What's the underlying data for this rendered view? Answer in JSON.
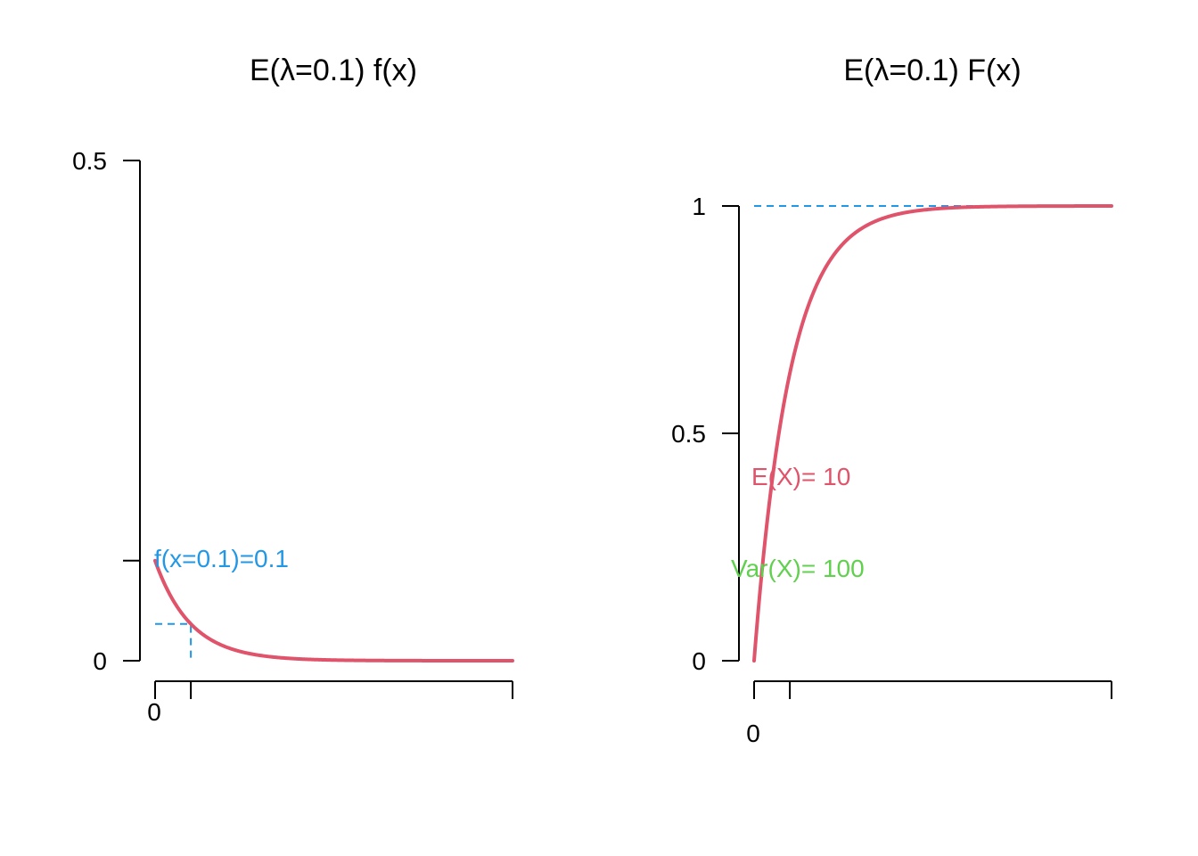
{
  "colors": {
    "curve": "#DF536B",
    "guide": "#2297E6",
    "mean": "#DF536B",
    "variance": "#61D04F",
    "zero_tick_gray": "#6b6b6b"
  },
  "chart_data": [
    {
      "type": "line",
      "title": "E(λ=0.1)  f(x)",
      "xlabel": "",
      "ylabel": "",
      "rate": 0.1,
      "x_range": [
        0,
        100
      ],
      "ylim": [
        0,
        0.5
      ],
      "y_ticks": [
        {
          "value": 0,
          "label": "0"
        },
        {
          "value": 0.1,
          "label": ""
        },
        {
          "value": 0.5,
          "label": "0.5"
        }
      ],
      "x_ticks": [
        {
          "value": 0,
          "label": "0"
        },
        {
          "value": 10,
          "label": ""
        },
        {
          "value": 100,
          "label": ""
        }
      ],
      "series": [
        {
          "x": [
            0,
            5,
            10,
            15,
            20,
            25,
            30,
            40,
            50,
            60,
            70,
            80,
            90,
            100
          ],
          "y": [
            0.1,
            0.0607,
            0.0368,
            0.0223,
            0.0135,
            0.0082,
            0.005,
            0.0018,
            0.0007,
            0.0002,
            0.0001,
            0.0,
            0.0,
            0.0
          ]
        }
      ],
      "guide_point": {
        "x": 10,
        "y": 0.0368
      },
      "annotation": "f(x=0.1)=0.1",
      "grid": false
    },
    {
      "type": "line",
      "title": "E(λ=0.1)  F(x)",
      "xlabel": "",
      "ylabel": "",
      "rate": 0.1,
      "x_range": [
        0,
        100
      ],
      "ylim": [
        0,
        1
      ],
      "y_ticks": [
        {
          "value": 0,
          "label": "0"
        },
        {
          "value": 0.5,
          "label": "0.5"
        },
        {
          "value": 1,
          "label": "1"
        }
      ],
      "x_ticks": [
        {
          "value": 0,
          "label": "0"
        },
        {
          "value": 10,
          "label": ""
        },
        {
          "value": 100,
          "label": ""
        }
      ],
      "series": [
        {
          "x": [
            0,
            2.5,
            5,
            7.5,
            10,
            15,
            20,
            25,
            30,
            40,
            50,
            60,
            70,
            80,
            90,
            100
          ],
          "y": [
            0,
            0.2212,
            0.3935,
            0.5276,
            0.6321,
            0.7769,
            0.8647,
            0.9179,
            0.9502,
            0.9817,
            0.9933,
            0.9975,
            0.9991,
            0.9997,
            0.9999,
            1.0
          ]
        }
      ],
      "guide_y": 1,
      "annotations": [
        {
          "text": "E(X)= 10",
          "color_key": "mean"
        },
        {
          "text": "Var(X)= 100",
          "color_key": "variance"
        }
      ],
      "grid": false
    }
  ]
}
